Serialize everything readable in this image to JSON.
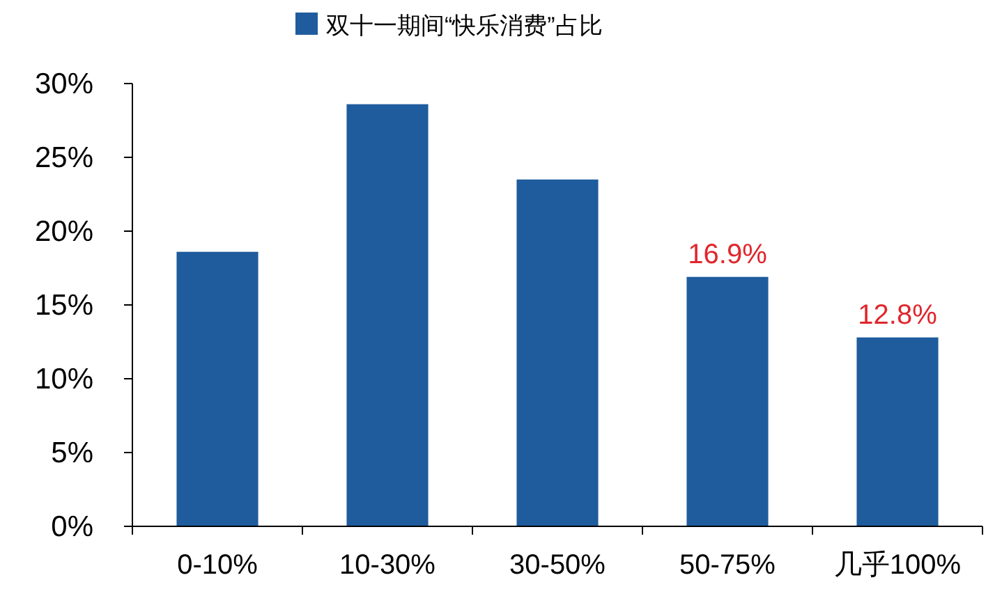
{
  "chart_data": {
    "type": "bar",
    "categories": [
      "0-10%",
      "10-30%",
      "30-50%",
      "50-75%",
      "几乎100%"
    ],
    "series": [
      {
        "name": "双十一期间“快乐消费”占比",
        "color": "#1f5c9e",
        "values": [
          18.6,
          28.6,
          23.5,
          16.9,
          12.8
        ],
        "value_labels": [
          null,
          null,
          null,
          "16.9%",
          "12.8%"
        ]
      }
    ],
    "ylim": [
      0,
      30
    ],
    "yticks": [
      {
        "value": 0,
        "label": "0%"
      },
      {
        "value": 5,
        "label": "5%"
      },
      {
        "value": 10,
        "label": "10%"
      },
      {
        "value": 15,
        "label": "15%"
      },
      {
        "value": 20,
        "label": "20%"
      },
      {
        "value": 25,
        "label": "25%"
      },
      {
        "value": 30,
        "label": "30%"
      }
    ],
    "grid": false,
    "legend": "top"
  }
}
